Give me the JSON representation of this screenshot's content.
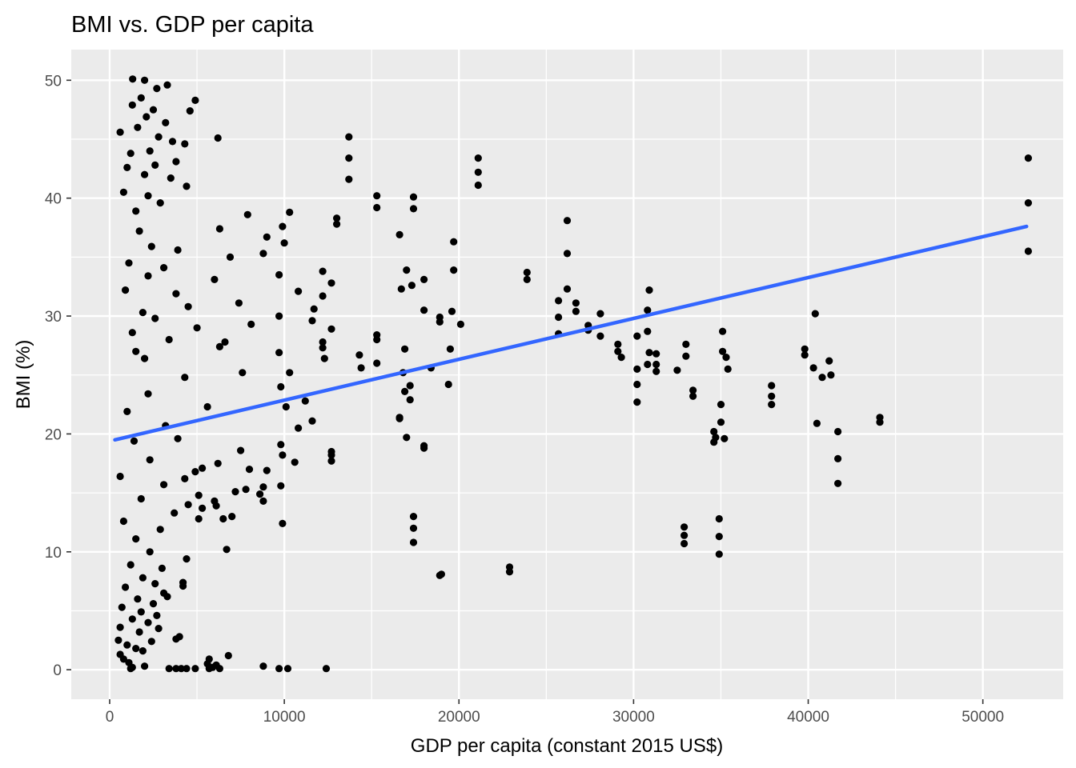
{
  "chart_data": {
    "type": "scatter",
    "title": "BMI vs. GDP per capita",
    "xlabel": "GDP per capita (constant 2015 US$)",
    "ylabel": "BMI (%)",
    "xlim": [
      -2200,
      54600
    ],
    "ylim": [
      -2.5,
      52.6
    ],
    "x_ticks": [
      0,
      10000,
      20000,
      30000,
      40000,
      50000
    ],
    "x_tick_labels": [
      "0",
      "10000",
      "20000",
      "30000",
      "40000",
      "50000"
    ],
    "y_ticks": [
      0,
      10,
      20,
      30,
      40,
      50
    ],
    "y_tick_labels": [
      "0",
      "10",
      "20",
      "30",
      "40",
      "50"
    ],
    "grid": true,
    "legend": "none",
    "colors": {
      "panel": "#ebebeb",
      "grid": "#ffffff",
      "points": "#000000",
      "trend": "#3366ff"
    },
    "trend_line": {
      "x": [
        300,
        52500
      ],
      "y": [
        19.5,
        37.6
      ]
    },
    "series": [
      {
        "points": [
          [
            1315,
            50.1
          ],
          [
            2000,
            50.0
          ],
          [
            3300,
            49.6
          ],
          [
            2700,
            49.3
          ],
          [
            1800,
            48.5
          ],
          [
            4900,
            48.3
          ],
          [
            1300,
            47.9
          ],
          [
            2500,
            47.5
          ],
          [
            4600,
            47.4
          ],
          [
            2100,
            46.9
          ],
          [
            3200,
            46.4
          ],
          [
            1600,
            46.0
          ],
          [
            600,
            45.6
          ],
          [
            2800,
            45.2
          ],
          [
            6200,
            45.1
          ],
          [
            13700,
            45.2
          ],
          [
            3600,
            44.8
          ],
          [
            4300,
            44.6
          ],
          [
            2300,
            44.0
          ],
          [
            1200,
            43.8
          ],
          [
            13700,
            43.4
          ],
          [
            21100,
            43.4
          ],
          [
            52600,
            43.4
          ],
          [
            3800,
            43.1
          ],
          [
            2600,
            42.8
          ],
          [
            1000,
            42.6
          ],
          [
            21100,
            42.2
          ],
          [
            2000,
            42.0
          ],
          [
            3500,
            41.7
          ],
          [
            13700,
            41.6
          ],
          [
            21100,
            41.1
          ],
          [
            4400,
            41.0
          ],
          [
            800,
            40.5
          ],
          [
            2200,
            40.2
          ],
          [
            15300,
            40.2
          ],
          [
            17400,
            40.1
          ],
          [
            2900,
            39.6
          ],
          [
            52600,
            39.6
          ],
          [
            15300,
            39.2
          ],
          [
            17400,
            39.1
          ],
          [
            1500,
            38.9
          ],
          [
            10300,
            38.8
          ],
          [
            7900,
            38.6
          ],
          [
            26200,
            38.1
          ],
          [
            13000,
            38.3
          ],
          [
            13000,
            37.8
          ],
          [
            9900,
            37.6
          ],
          [
            6300,
            37.4
          ],
          [
            1700,
            37.2
          ],
          [
            16600,
            36.9
          ],
          [
            9000,
            36.7
          ],
          [
            10000,
            36.2
          ],
          [
            19700,
            36.3
          ],
          [
            2400,
            35.9
          ],
          [
            3900,
            35.6
          ],
          [
            52600,
            35.5
          ],
          [
            26200,
            35.3
          ],
          [
            8800,
            35.3
          ],
          [
            6900,
            35.0
          ],
          [
            1100,
            34.5
          ],
          [
            3100,
            34.1
          ],
          [
            17000,
            33.9
          ],
          [
            19700,
            33.9
          ],
          [
            23900,
            33.7
          ],
          [
            9700,
            33.5
          ],
          [
            2200,
            33.4
          ],
          [
            12200,
            33.8
          ],
          [
            6000,
            33.1
          ],
          [
            23900,
            33.1
          ],
          [
            18000,
            33.1
          ],
          [
            12700,
            32.8
          ],
          [
            17300,
            32.6
          ],
          [
            26200,
            32.3
          ],
          [
            30900,
            32.2
          ],
          [
            900,
            32.2
          ],
          [
            16700,
            32.3
          ],
          [
            10800,
            32.1
          ],
          [
            3800,
            31.9
          ],
          [
            12200,
            31.7
          ],
          [
            25700,
            31.3
          ],
          [
            7400,
            31.1
          ],
          [
            26700,
            31.1
          ],
          [
            4500,
            30.8
          ],
          [
            18000,
            30.5
          ],
          [
            11700,
            30.6
          ],
          [
            30800,
            30.5
          ],
          [
            1900,
            30.3
          ],
          [
            19600,
            30.4
          ],
          [
            26700,
            30.4
          ],
          [
            28100,
            30.2
          ],
          [
            40400,
            30.2
          ],
          [
            9700,
            30.0
          ],
          [
            18900,
            29.9
          ],
          [
            25700,
            29.9
          ],
          [
            2600,
            29.8
          ],
          [
            18900,
            29.5
          ],
          [
            11600,
            29.6
          ],
          [
            8100,
            29.3
          ],
          [
            20100,
            29.3
          ],
          [
            27400,
            29.2
          ],
          [
            5000,
            29.0
          ],
          [
            15300,
            28.4
          ],
          [
            12700,
            28.9
          ],
          [
            35100,
            28.7
          ],
          [
            30800,
            28.7
          ],
          [
            1300,
            28.6
          ],
          [
            25700,
            28.5
          ],
          [
            28100,
            28.3
          ],
          [
            30200,
            28.3
          ],
          [
            27400,
            28.8
          ],
          [
            3400,
            28.0
          ],
          [
            15300,
            28.0
          ],
          [
            6600,
            27.8
          ],
          [
            12200,
            27.8
          ],
          [
            33000,
            27.6
          ],
          [
            29100,
            27.6
          ],
          [
            6300,
            27.4
          ],
          [
            12200,
            27.3
          ],
          [
            19500,
            27.2
          ],
          [
            16900,
            27.2
          ],
          [
            39800,
            27.2
          ],
          [
            1500,
            27.0
          ],
          [
            29100,
            27.0
          ],
          [
            35100,
            27.0
          ],
          [
            9700,
            26.9
          ],
          [
            30900,
            26.9
          ],
          [
            14300,
            26.7
          ],
          [
            31300,
            26.8
          ],
          [
            41200,
            26.2
          ],
          [
            29300,
            26.5
          ],
          [
            35300,
            26.5
          ],
          [
            2000,
            26.4
          ],
          [
            12300,
            26.4
          ],
          [
            39800,
            26.7
          ],
          [
            33000,
            26.6
          ],
          [
            15300,
            26.0
          ],
          [
            30800,
            25.9
          ],
          [
            31300,
            25.9
          ],
          [
            18400,
            25.6
          ],
          [
            30200,
            25.5
          ],
          [
            14400,
            25.6
          ],
          [
            40300,
            25.6
          ],
          [
            32500,
            25.4
          ],
          [
            35400,
            25.5
          ],
          [
            7600,
            25.2
          ],
          [
            10300,
            25.2
          ],
          [
            16800,
            25.2
          ],
          [
            40800,
            24.8
          ],
          [
            31300,
            25.3
          ],
          [
            41300,
            25.0
          ],
          [
            4300,
            24.8
          ],
          [
            37900,
            24.1
          ],
          [
            17200,
            24.1
          ],
          [
            19400,
            24.2
          ],
          [
            9800,
            24.0
          ],
          [
            30200,
            24.2
          ],
          [
            16900,
            23.6
          ],
          [
            33400,
            23.7
          ],
          [
            2200,
            23.4
          ],
          [
            33400,
            23.2
          ],
          [
            37900,
            23.2
          ],
          [
            17200,
            22.9
          ],
          [
            30200,
            22.7
          ],
          [
            11200,
            22.8
          ],
          [
            35000,
            22.5
          ],
          [
            5600,
            22.3
          ],
          [
            10100,
            22.3
          ],
          [
            37900,
            22.5
          ],
          [
            1000,
            21.9
          ],
          [
            44100,
            21.4
          ],
          [
            16600,
            21.4
          ],
          [
            11600,
            21.1
          ],
          [
            35000,
            21.0
          ],
          [
            40500,
            20.9
          ],
          [
            3200,
            20.7
          ],
          [
            44100,
            21.0
          ],
          [
            16600,
            21.3
          ],
          [
            10800,
            20.5
          ],
          [
            34600,
            20.2
          ],
          [
            41700,
            20.2
          ],
          [
            34700,
            19.7
          ],
          [
            3900,
            19.6
          ],
          [
            35200,
            19.6
          ],
          [
            17000,
            19.7
          ],
          [
            1400,
            19.4
          ],
          [
            34600,
            19.3
          ],
          [
            9800,
            19.1
          ],
          [
            18000,
            19.0
          ],
          [
            18000,
            18.8
          ],
          [
            7500,
            18.6
          ],
          [
            12700,
            18.5
          ],
          [
            12700,
            18.2
          ],
          [
            9900,
            18.2
          ],
          [
            41700,
            17.9
          ],
          [
            2300,
            17.8
          ],
          [
            6200,
            17.5
          ],
          [
            10600,
            17.6
          ],
          [
            12700,
            17.7
          ],
          [
            5300,
            17.1
          ],
          [
            8000,
            17.0
          ],
          [
            4900,
            16.8
          ],
          [
            9000,
            16.9
          ],
          [
            600,
            16.4
          ],
          [
            4300,
            16.2
          ],
          [
            41700,
            15.8
          ],
          [
            3100,
            15.7
          ],
          [
            9800,
            15.6
          ],
          [
            8800,
            15.5
          ],
          [
            7800,
            15.3
          ],
          [
            7200,
            15.1
          ],
          [
            5100,
            14.8
          ],
          [
            8600,
            14.9
          ],
          [
            1800,
            14.5
          ],
          [
            8800,
            14.3
          ],
          [
            6000,
            14.3
          ],
          [
            4500,
            14.0
          ],
          [
            6100,
            13.9
          ],
          [
            5300,
            13.7
          ],
          [
            3700,
            13.3
          ],
          [
            7000,
            13.0
          ],
          [
            17400,
            13.0
          ],
          [
            34900,
            12.8
          ],
          [
            5100,
            12.8
          ],
          [
            6500,
            12.8
          ],
          [
            800,
            12.6
          ],
          [
            9900,
            12.4
          ],
          [
            32900,
            12.1
          ],
          [
            17400,
            12.0
          ],
          [
            2900,
            11.9
          ],
          [
            32900,
            11.4
          ],
          [
            34900,
            11.3
          ],
          [
            1500,
            11.1
          ],
          [
            17400,
            10.8
          ],
          [
            32900,
            10.7
          ],
          [
            6700,
            10.2
          ],
          [
            2300,
            10.0
          ],
          [
            34900,
            9.8
          ],
          [
            4400,
            9.4
          ],
          [
            1200,
            8.9
          ],
          [
            22900,
            8.7
          ],
          [
            3000,
            8.6
          ],
          [
            22900,
            8.3
          ],
          [
            18900,
            8.0
          ],
          [
            19000,
            8.1
          ],
          [
            1900,
            7.8
          ],
          [
            4200,
            7.4
          ],
          [
            2600,
            7.3
          ],
          [
            4200,
            7.1
          ],
          [
            900,
            7.0
          ],
          [
            3100,
            6.5
          ],
          [
            3300,
            6.2
          ],
          [
            1600,
            6.0
          ],
          [
            2500,
            5.6
          ],
          [
            700,
            5.3
          ],
          [
            1800,
            4.9
          ],
          [
            2700,
            4.6
          ],
          [
            1300,
            4.3
          ],
          [
            2200,
            4.0
          ],
          [
            600,
            3.6
          ],
          [
            2800,
            3.5
          ],
          [
            1700,
            3.2
          ],
          [
            4000,
            2.8
          ],
          [
            3800,
            2.6
          ],
          [
            500,
            2.5
          ],
          [
            2400,
            2.4
          ],
          [
            1000,
            2.1
          ],
          [
            1500,
            1.8
          ],
          [
            1900,
            1.6
          ],
          [
            600,
            1.3
          ],
          [
            6800,
            1.2
          ],
          [
            800,
            0.9
          ],
          [
            5700,
            0.9
          ],
          [
            1100,
            0.6
          ],
          [
            5600,
            0.5
          ],
          [
            6100,
            0.4
          ],
          [
            1300,
            0.2
          ],
          [
            3400,
            0.1
          ],
          [
            3800,
            0.1
          ],
          [
            4100,
            0.1
          ],
          [
            4400,
            0.1
          ],
          [
            4900,
            0.1
          ],
          [
            5700,
            0.1
          ],
          [
            6300,
            0.1
          ],
          [
            8800,
            0.3
          ],
          [
            9700,
            0.1
          ],
          [
            10200,
            0.1
          ],
          [
            12400,
            0.1
          ],
          [
            1200,
            0.1
          ],
          [
            5900,
            0.2
          ],
          [
            2000,
            0.3
          ]
        ]
      }
    ]
  }
}
